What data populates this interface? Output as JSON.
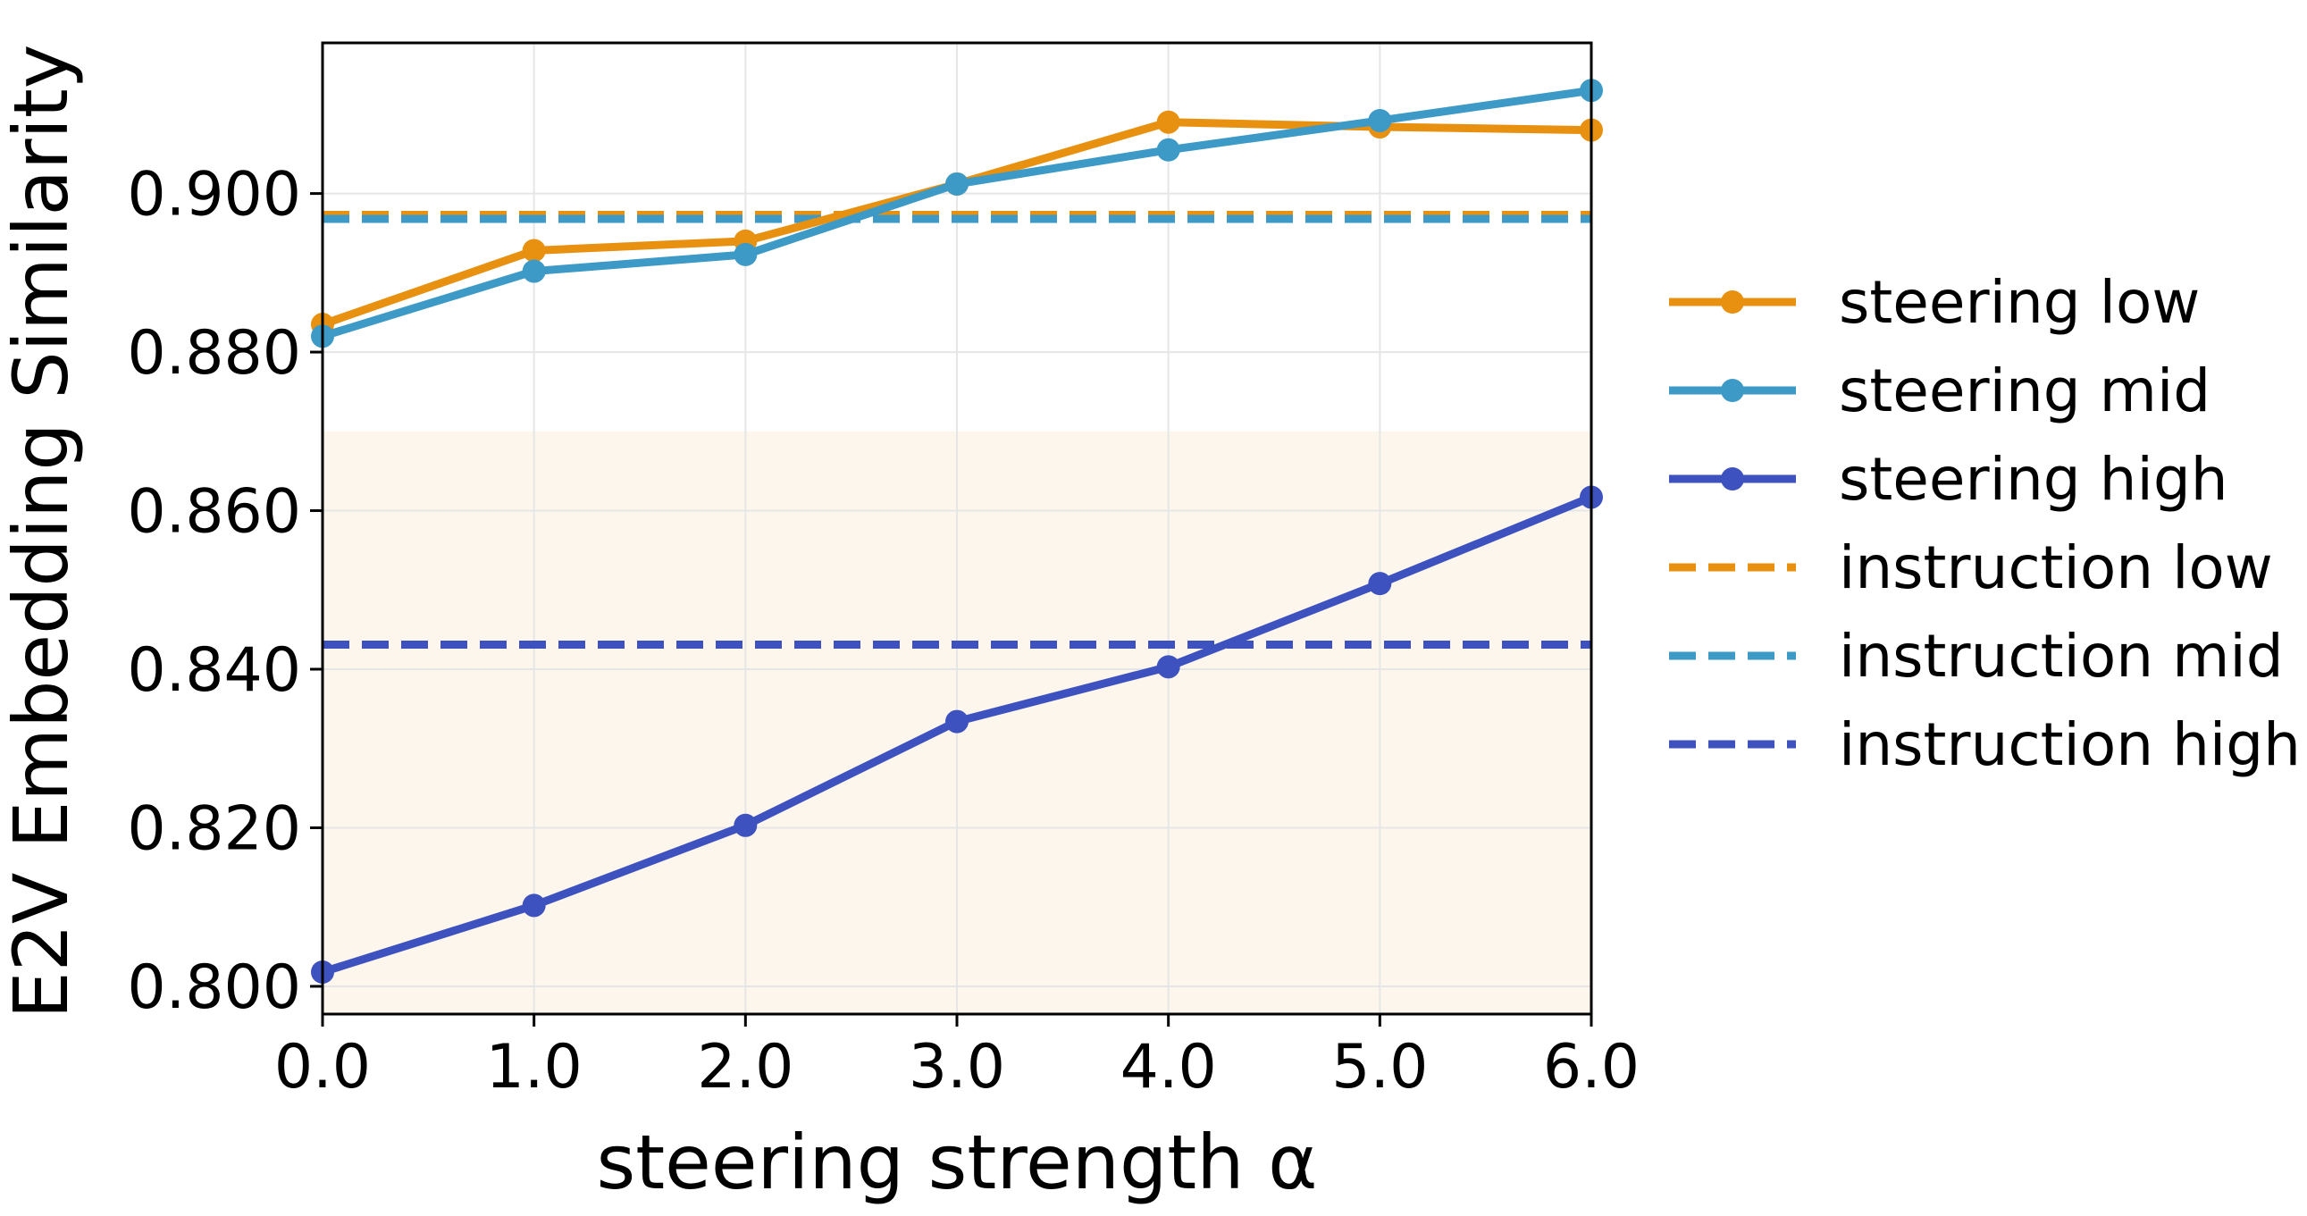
{
  "chart_data": {
    "type": "line",
    "title": "",
    "xlabel": "steering strength α",
    "ylabel": "E2V Embedding Similarity",
    "xlim": [
      0.0,
      6.0
    ],
    "ylim": [
      0.7965,
      0.919
    ],
    "x_ticks": [
      0.0,
      1.0,
      2.0,
      3.0,
      4.0,
      5.0,
      6.0
    ],
    "x_tick_labels": [
      "0.0",
      "1.0",
      "2.0",
      "3.0",
      "4.0",
      "5.0",
      "6.0"
    ],
    "y_ticks": [
      0.8,
      0.82,
      0.84,
      0.86,
      0.88,
      0.9
    ],
    "y_tick_labels": [
      "0.800",
      "0.820",
      "0.840",
      "0.860",
      "0.880",
      "0.900"
    ],
    "grid": true,
    "shaded_region": {
      "y_from": 0.7965,
      "y_to": 0.87,
      "color": "#fdf6ec"
    },
    "legend_position": "outside-right",
    "series": [
      {
        "name": "steering low",
        "kind": "line-markers",
        "color": "#e8900f",
        "x": [
          0,
          1,
          2,
          3,
          4,
          5,
          6
        ],
        "values": [
          0.8835,
          0.8928,
          0.894,
          0.9012,
          0.909,
          0.9084,
          0.908
        ]
      },
      {
        "name": "steering mid",
        "kind": "line-markers",
        "color": "#3d9ac6",
        "x": [
          0,
          1,
          2,
          3,
          4,
          5,
          6
        ],
        "values": [
          0.882,
          0.8902,
          0.8923,
          0.9012,
          0.9055,
          0.9092,
          0.913
        ]
      },
      {
        "name": "steering high",
        "kind": "line-markers",
        "color": "#3d52bf",
        "x": [
          0,
          1,
          2,
          3,
          4,
          5,
          6
        ],
        "values": [
          0.8018,
          0.8102,
          0.8203,
          0.8334,
          0.8403,
          0.8508,
          0.8617
        ]
      },
      {
        "name": "instruction low",
        "kind": "hline-dashed",
        "color": "#e8900f",
        "value": 0.8973
      },
      {
        "name": "instruction mid",
        "kind": "hline-dashed",
        "color": "#3d9ac6",
        "value": 0.8968
      },
      {
        "name": "instruction high",
        "kind": "hline-dashed",
        "color": "#3d52bf",
        "value": 0.8431
      }
    ]
  }
}
